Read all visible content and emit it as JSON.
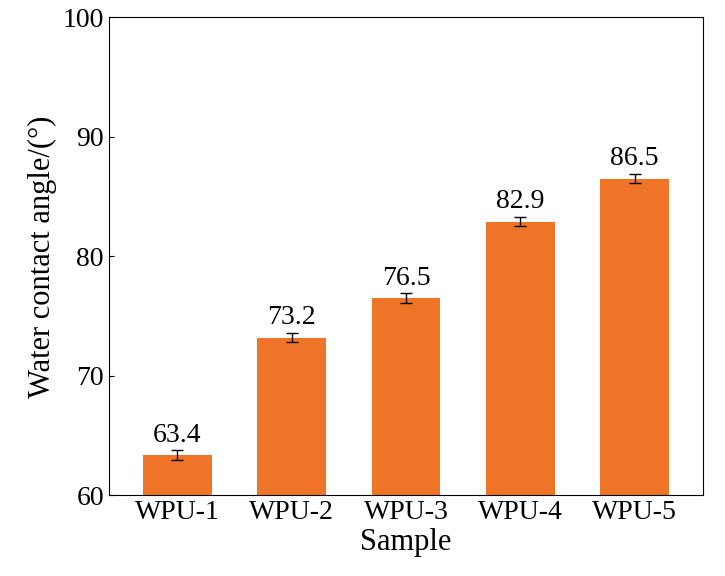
{
  "chart_data": {
    "type": "bar",
    "categories": [
      "WPU-1",
      "WPU-2",
      "WPU-3",
      "WPU-4",
      "WPU-5"
    ],
    "values": [
      63.4,
      73.2,
      76.5,
      82.9,
      86.5
    ],
    "errors": [
      0.4,
      0.4,
      0.4,
      0.4,
      0.4
    ],
    "color": "#f07427",
    "x_label": "Sample",
    "y_label": "Water contact angle/(°)",
    "ylim": [
      60,
      100
    ],
    "yticks": [
      60,
      70,
      80,
      90,
      100
    ],
    "grid": false,
    "data_labels": true
  }
}
